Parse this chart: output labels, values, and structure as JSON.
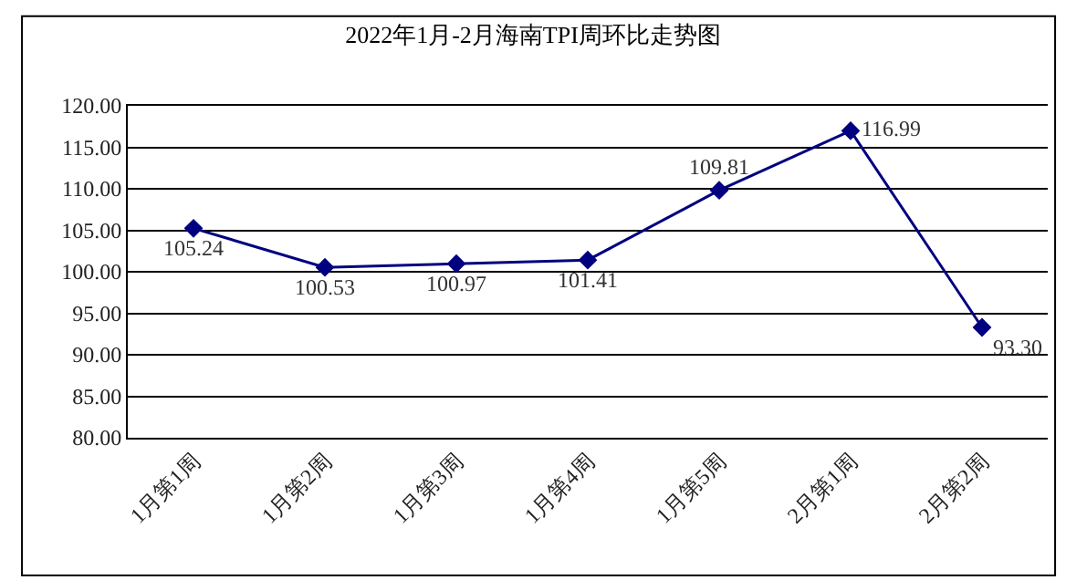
{
  "chart_data": {
    "type": "line",
    "title": "2022年1月-2月海南TPI周环比走势图",
    "categories": [
      "1月第1周",
      "1月第2周",
      "1月第3周",
      "1月第4周",
      "1月第5周",
      "2月第1周",
      "2月第2周"
    ],
    "series": [
      {
        "color": "#000080",
        "values": [
          105.24,
          100.53,
          100.97,
          101.41,
          109.81,
          116.99,
          93.3
        ],
        "value_labels": [
          "105.24",
          "100.53",
          "100.97",
          "101.41",
          "109.81",
          "116.99",
          "93.30"
        ]
      }
    ],
    "ylim": [
      80,
      120
    ],
    "yticks": [
      {
        "value": 80,
        "label": "80.00"
      },
      {
        "value": 85,
        "label": "85.00"
      },
      {
        "value": 90,
        "label": "90.00"
      },
      {
        "value": 95,
        "label": "95.00"
      },
      {
        "value": 100,
        "label": "100.00"
      },
      {
        "value": 105,
        "label": "105.00"
      },
      {
        "value": 110,
        "label": "110.00"
      },
      {
        "value": 115,
        "label": "115.00"
      },
      {
        "value": 120,
        "label": "120.00"
      }
    ],
    "grid": "y",
    "legend": false,
    "marker": "diamond",
    "line_style": "solid"
  }
}
